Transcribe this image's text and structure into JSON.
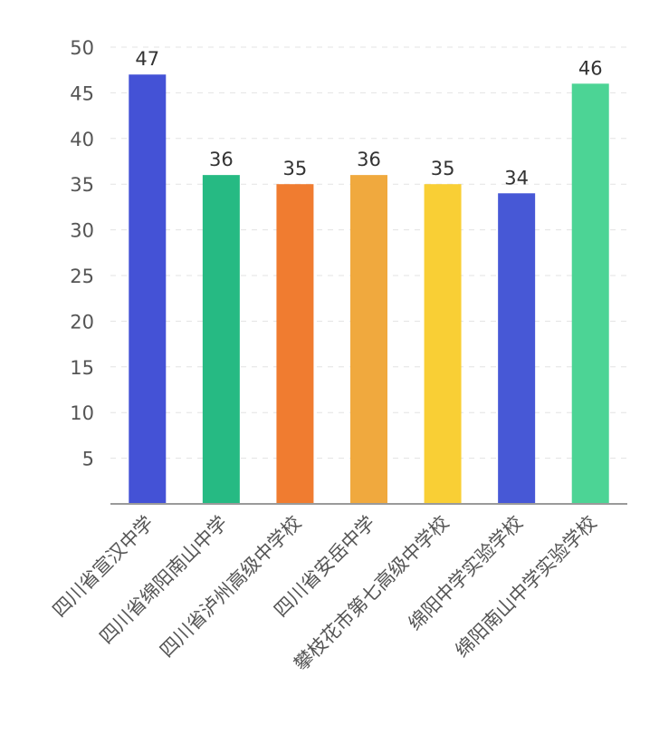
{
  "chart_data": {
    "type": "bar",
    "title": "",
    "xlabel": "",
    "ylabel": "",
    "ylim": [
      0,
      50
    ],
    "yticks": [
      5,
      10,
      15,
      20,
      25,
      30,
      35,
      40,
      45,
      50
    ],
    "grid": true,
    "legend": "none",
    "categories": [
      "四川省宣汉中学",
      "四川省绵阳南山中学",
      "四川省泸州高级中学校",
      "四川省安岳中学",
      "攀枝花市第七高级中学校",
      "绵阳中学实验学校",
      "绵阳南山中学实验学校"
    ],
    "values": [
      47,
      36,
      35,
      36,
      35,
      34,
      46
    ],
    "colors": [
      "#4452d6",
      "#26ba83",
      "#f07c30",
      "#f0a93e",
      "#f9cf35",
      "#4758d6",
      "#4cd495"
    ]
  }
}
